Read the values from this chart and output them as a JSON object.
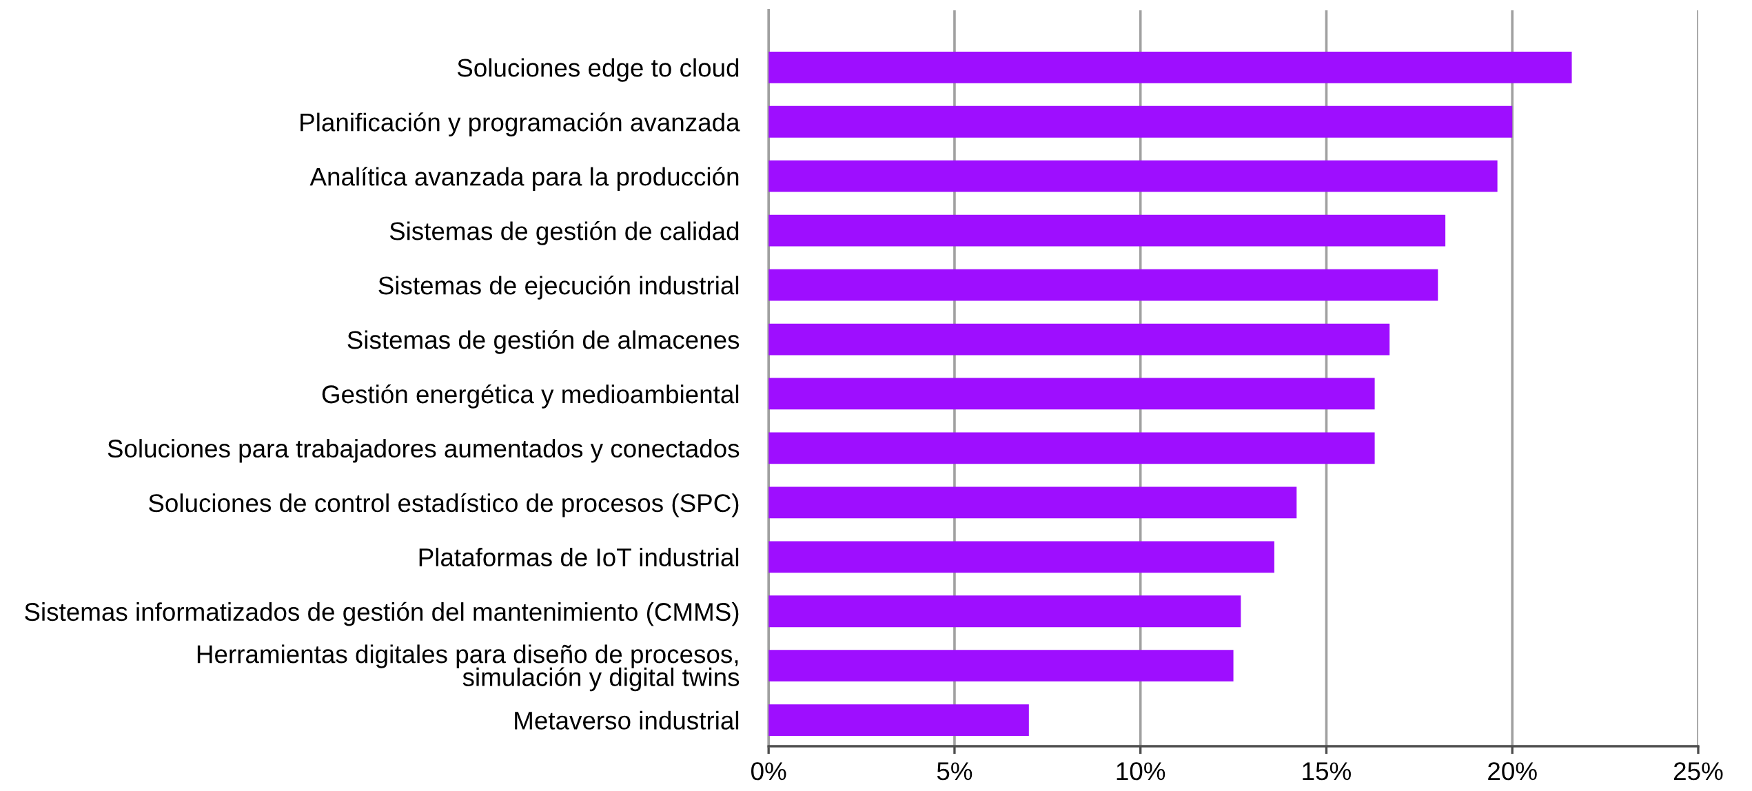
{
  "chart_data": {
    "type": "bar",
    "orientation": "horizontal",
    "categories": [
      "Soluciones edge to cloud",
      "Planificación y programación avanzada",
      "Analítica avanzada para la producción",
      "Sistemas de gestión de calidad",
      "Sistemas de ejecución industrial",
      "Sistemas de gestión de almacenes",
      "Gestión energética y medioambiental",
      "Soluciones para trabajadores aumentados y conectados",
      "Soluciones de control estadístico de procesos (SPC)",
      "Plataformas de IoT industrial",
      "Sistemas informatizados de gestión del mantenimiento (CMMS)",
      "Herramientas digitales para diseño de procesos,\nsimulación y digital twins",
      "Metaverso industrial"
    ],
    "values": [
      21.6,
      20.0,
      19.6,
      18.2,
      18.0,
      16.7,
      16.3,
      16.3,
      14.2,
      13.6,
      12.7,
      12.5,
      7.0
    ],
    "color": "#9e0eff",
    "xlim": [
      0,
      25
    ],
    "xticks": [
      {
        "value": 0,
        "label": "0%"
      },
      {
        "value": 5,
        "label": "5%"
      },
      {
        "value": 10,
        "label": "10%"
      },
      {
        "value": 15,
        "label": "15%"
      },
      {
        "value": 20,
        "label": "20%"
      },
      {
        "value": 25,
        "label": "25%"
      }
    ],
    "grid": "x"
  }
}
